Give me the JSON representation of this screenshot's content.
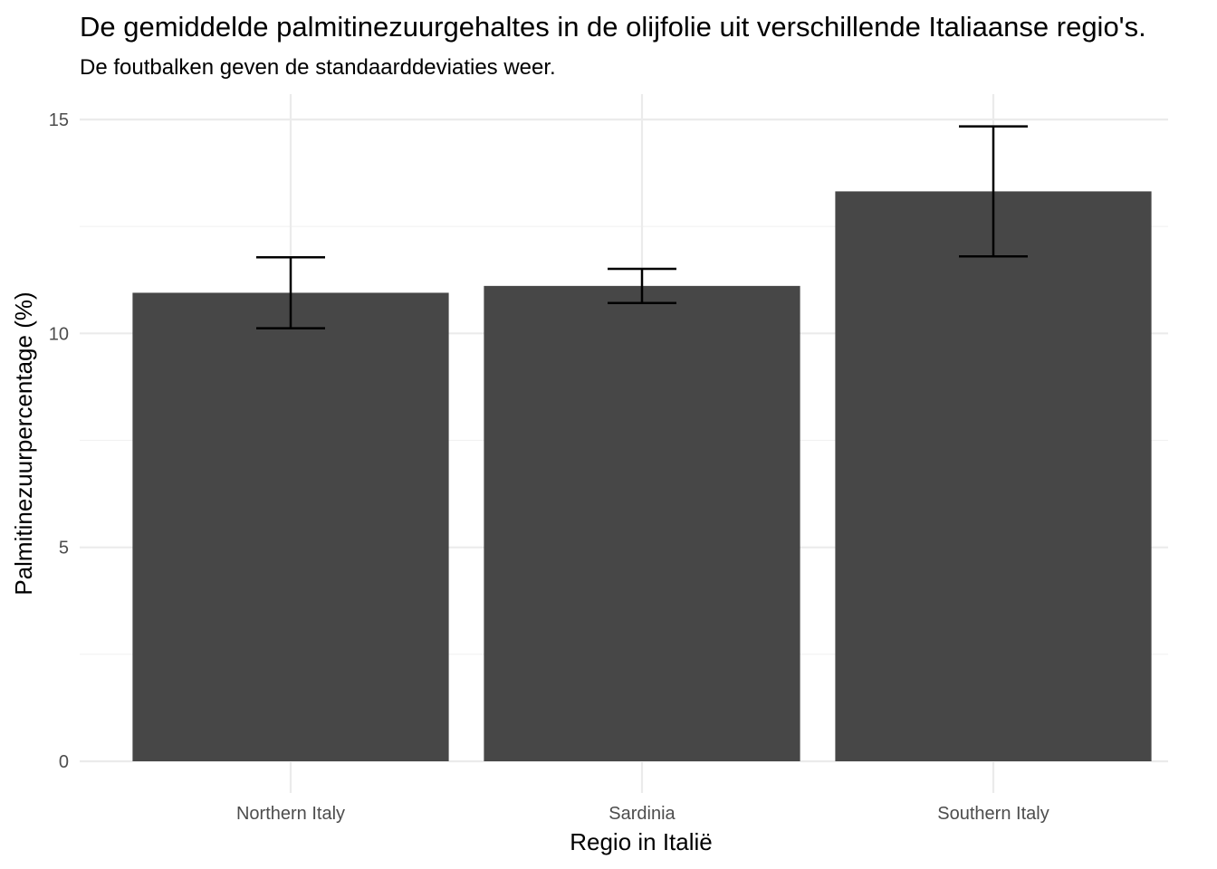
{
  "chart_data": {
    "type": "bar",
    "title": "De gemiddelde palmitinezuurgehaltes in de olijfolie uit verschillende Italiaanse regio's.",
    "subtitle": "De foutbalken geven de standaarddeviaties weer.",
    "xlabel": "Regio in Italië",
    "ylabel": "Palmitinezuurpercentage (%)",
    "categories": [
      "Northern Italy",
      "Sardinia",
      "Southern Italy"
    ],
    "values": [
      10.95,
      11.11,
      13.32
    ],
    "error_low": [
      10.12,
      10.71,
      11.8
    ],
    "error_high": [
      11.78,
      11.51,
      14.84
    ],
    "ylim": [
      0,
      15.6
    ],
    "yticks": [
      0,
      5,
      10,
      15
    ],
    "ytick_labels": [
      "0",
      "5",
      "10",
      "15"
    ],
    "grid": true,
    "legend": "none",
    "bar_color": "#474747",
    "errorbar_color": "#000000"
  }
}
